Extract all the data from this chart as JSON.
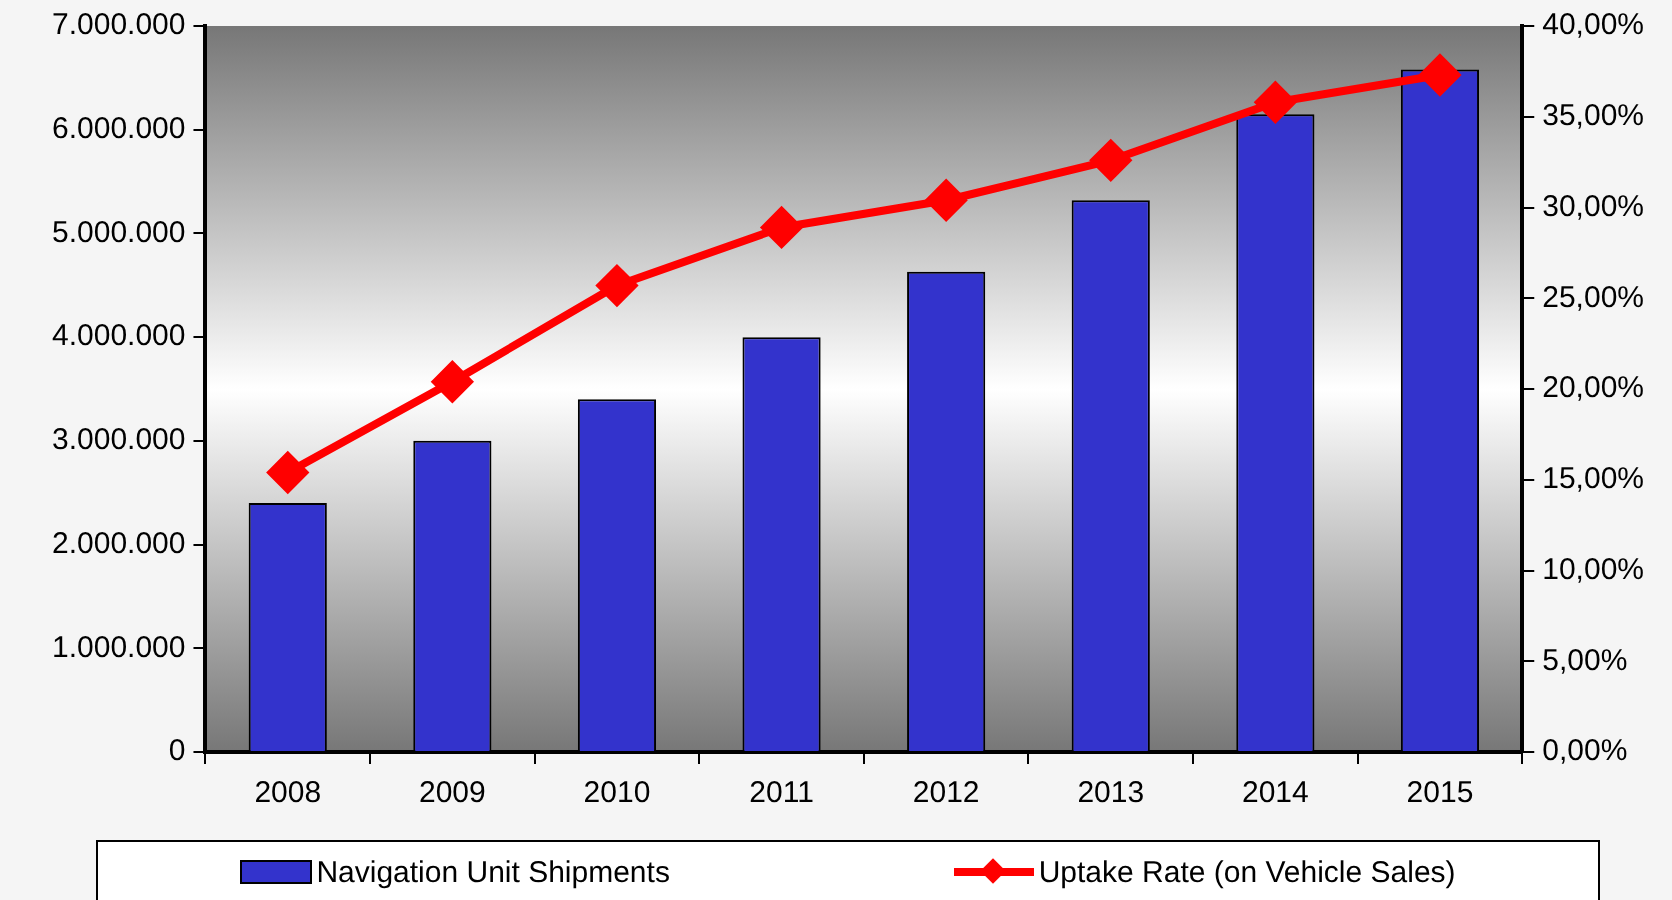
{
  "chart_data": {
    "type": "bar",
    "categories": [
      "2008",
      "2009",
      "2010",
      "2011",
      "2012",
      "2013",
      "2014",
      "2015"
    ],
    "series": [
      {
        "name": "Navigation Unit Shipments",
        "color": "#3333cc",
        "values": [
          2400000,
          3000000,
          3400000,
          4000000,
          4630000,
          5320000,
          6150000,
          6580000
        ]
      },
      {
        "name": "Uptake Rate (on Vehicle Sales)",
        "type": "line",
        "axis": "y2",
        "color": "#ff0000",
        "marker": "diamond",
        "values": [
          15.4,
          20.4,
          25.7,
          28.9,
          30.4,
          32.6,
          35.8,
          37.3
        ]
      }
    ],
    "ylim": [
      0,
      7000000
    ],
    "yticks": [
      {
        "value": 0,
        "label": "0"
      },
      {
        "value": 1000000,
        "label": "1.000.000"
      },
      {
        "value": 2000000,
        "label": "2.000.000"
      },
      {
        "value": 3000000,
        "label": "3.000.000"
      },
      {
        "value": 4000000,
        "label": "4.000.000"
      },
      {
        "value": 5000000,
        "label": "5.000.000"
      },
      {
        "value": 6000000,
        "label": "6.000.000"
      },
      {
        "value": 7000000,
        "label": "7.000.000"
      }
    ],
    "y2lim": [
      0,
      40
    ],
    "y2ticks": [
      {
        "value": 0,
        "label": "0,00%"
      },
      {
        "value": 5,
        "label": "5,00%"
      },
      {
        "value": 10,
        "label": "10,00%"
      },
      {
        "value": 15,
        "label": "15,00%"
      },
      {
        "value": 20,
        "label": "20,00%"
      },
      {
        "value": 25,
        "label": "25,00%"
      },
      {
        "value": 30,
        "label": "30,00%"
      },
      {
        "value": 35,
        "label": "35,00%"
      },
      {
        "value": 40,
        "label": "40,00%"
      }
    ],
    "grid": false,
    "legend": "bottom"
  }
}
